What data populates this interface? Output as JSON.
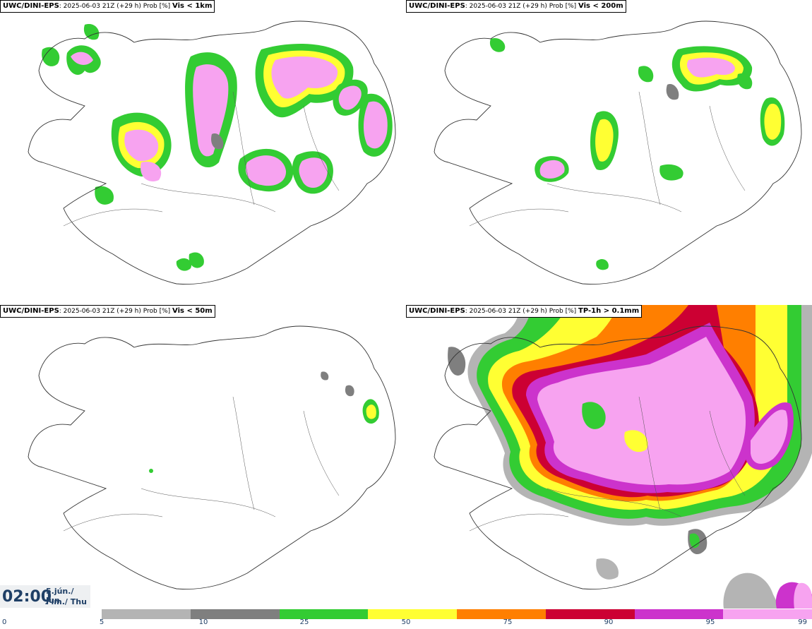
{
  "panels": [
    {
      "model": "UWC/DINI-EPS",
      "run": ": 2025-06-03 21Z (+29 h) Prob [%]",
      "field": "Vis < 1km"
    },
    {
      "model": "UWC/DINI-EPS",
      "run": ": 2025-06-03 21Z (+29 h) Prob [%]",
      "field": "Vis < 200m"
    },
    {
      "model": "UWC/DINI-EPS",
      "run": ": 2025-06-03 21Z (+29 h) Prob [%]",
      "field": "Vis < 50m"
    },
    {
      "model": "UWC/DINI-EPS",
      "run": ": 2025-06-03 21Z (+29 h) Prob [%]",
      "field": "TP-1h > 0.1mm"
    }
  ],
  "valid_time": {
    "time": "02:00",
    "date_line1": "5.jún./ Jun",
    "date_line2": "Fim./ Thu"
  },
  "colorbar": {
    "ticks": [
      "0",
      "5",
      "10",
      "25",
      "50",
      "75",
      "90",
      "95",
      "99"
    ],
    "colors": [
      "#b4b4b4",
      "#7f7f7f",
      "#33cc33",
      "#ffff33",
      "#ff7f00",
      "#cc0033",
      "#cc33cc",
      "#f7a3f0"
    ]
  }
}
